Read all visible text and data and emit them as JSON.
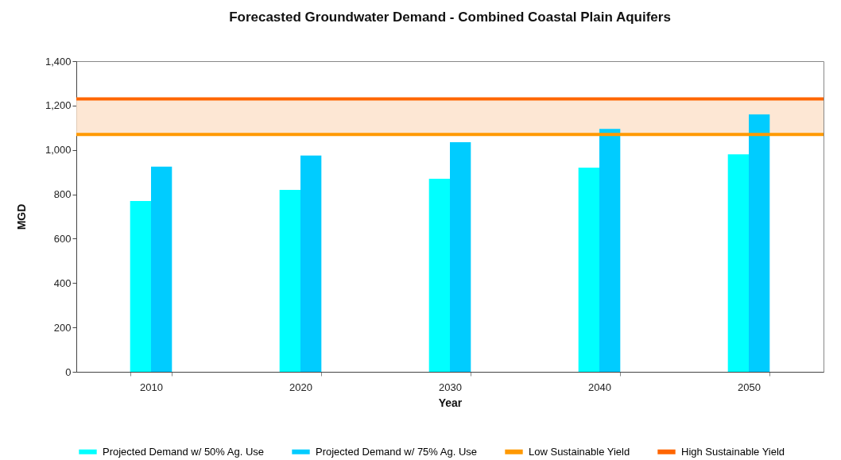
{
  "chart_data": {
    "type": "bar",
    "title": "Forecasted Groundwater Demand - Combined Coastal Plain Aquifers",
    "xlabel": "Year",
    "ylabel": "MGD",
    "categories": [
      "2010",
      "2020",
      "2030",
      "2040",
      "2050"
    ],
    "series": [
      {
        "name": "Projected Demand w/ 50% Ag. Use",
        "color": "#00ffff",
        "values": [
          770,
          820,
          870,
          920,
          980
        ]
      },
      {
        "name": "Projected Demand w/ 75% Ag. Use",
        "color": "#00ccff",
        "values": [
          925,
          975,
          1035,
          1095,
          1160
        ]
      }
    ],
    "ylim": [
      0,
      1400
    ],
    "yticks": [
      0,
      200,
      400,
      600,
      800,
      {
        "value": 1000,
        "label": "1,000"
      },
      {
        "value": 1200,
        "label": "1,200"
      },
      {
        "value": 1400,
        "label": "1,400"
      }
    ],
    "ref_lines": [
      {
        "axis": "y",
        "value": 1070,
        "label": "Low Sustainable Yield",
        "color": "#ff9900"
      },
      {
        "axis": "y",
        "value": 1230,
        "label": "High Sustainable Yield",
        "color": "#ff6600"
      }
    ],
    "bands": [
      {
        "axis": "y",
        "from": 1070,
        "to": 1230,
        "color": "#fde3cd"
      }
    ],
    "grid": false,
    "legend": "bottom"
  }
}
